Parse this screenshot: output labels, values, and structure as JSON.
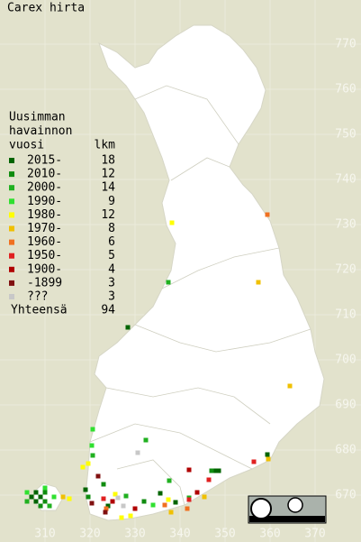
{
  "map": {
    "title": "Carex hirta",
    "legend": {
      "heading": [
        "Uusimman",
        "havainnon",
        "vuosi"
      ],
      "count_heading": "lkm",
      "items": [
        {
          "label": "2015-",
          "count": 18,
          "color": "#006400",
          "points": [
            [
              328.4,
              707.2
            ],
            [
              359.4,
              679
            ],
            [
              348,
              675.4
            ],
            [
              348.6,
              675.4
            ],
            [
              339,
              668.4
            ],
            [
              335.6,
              670.4
            ],
            [
              307,
              669.6
            ],
            [
              308,
              670.6
            ],
            [
              309,
              669.6
            ],
            [
              308,
              668.6
            ],
            [
              319,
              671.2
            ],
            [
              324,
              667.6
            ]
          ]
        },
        {
          "label": "2010-",
          "count": 12,
          "color": "#108c10",
          "points": [
            [
              347,
              675.4
            ],
            [
              319.6,
              669.6
            ],
            [
              310,
              668.6
            ],
            [
              309,
              667.6
            ],
            [
              310,
              670.6
            ],
            [
              323,
              672.4
            ],
            [
              332,
              668.6
            ]
          ]
        },
        {
          "label": "2000-",
          "count": 14,
          "color": "#20b020",
          "points": [
            [
              337.4,
              717.2
            ],
            [
              332.4,
              682.2
            ],
            [
              320.6,
              678.8
            ],
            [
              337.6,
              673.2
            ],
            [
              311,
              667.6
            ],
            [
              306,
              668.6
            ],
            [
              328,
              669.8
            ],
            [
              342,
              669.4
            ]
          ]
        },
        {
          "label": "1990-",
          "count": 9,
          "color": "#30e030",
          "points": [
            [
              320.6,
              684.6
            ],
            [
              320.4,
              681
            ],
            [
              312,
              669.6
            ],
            [
              306,
              670.6
            ],
            [
              310,
              671.6
            ],
            [
              334,
              667.8
            ]
          ]
        },
        {
          "label": "1980-",
          "count": 12,
          "color": "#ffff00",
          "points": [
            [
              338.2,
              730.4
            ],
            [
              318.4,
              676.2
            ],
            [
              319.6,
              677
            ],
            [
              325.6,
              670.2
            ],
            [
              315.4,
              669.2
            ],
            [
              327,
              665
            ],
            [
              329,
              665.4
            ],
            [
              337.4,
              669
            ]
          ]
        },
        {
          "label": "1970-",
          "count": 8,
          "color": "#f0c000",
          "points": [
            [
              357.4,
              717.2
            ],
            [
              364.4,
              694.2
            ],
            [
              359.6,
              678
            ],
            [
              314,
              669.6
            ],
            [
              345.4,
              669.6
            ],
            [
              338,
              666.2
            ]
          ]
        },
        {
          "label": "1960-",
          "count": 6,
          "color": "#f07020",
          "points": [
            [
              359.4,
              732.2
            ],
            [
              323.6,
              667
            ],
            [
              336.6,
              667.8
            ],
            [
              341.6,
              667
            ]
          ]
        },
        {
          "label": "1950-",
          "count": 5,
          "color": "#e02020",
          "points": [
            [
              356.4,
              677.4
            ],
            [
              346.4,
              673.4
            ],
            [
              323,
              669.2
            ],
            [
              342,
              669
            ]
          ]
        },
        {
          "label": "1900-",
          "count": 4,
          "color": "#b00000",
          "points": [
            [
              342,
              675.6
            ],
            [
              325,
              668.6
            ],
            [
              330,
              667
            ],
            [
              343.8,
              670.6
            ]
          ]
        },
        {
          "label": "-1899",
          "count": 3,
          "color": "#801010",
          "points": [
            [
              321.8,
              674.2
            ],
            [
              323.4,
              666.2
            ],
            [
              320.4,
              668.2
            ]
          ]
        },
        {
          "label": "???",
          "count": 3,
          "color": "#c8c8c8",
          "points": [
            [
              330.6,
              679.4
            ],
            [
              327.4,
              667.6
            ],
            [
              326.2,
              669.4
            ]
          ]
        }
      ],
      "total": {
        "label": "Yhteensä",
        "value": 94
      }
    },
    "xticks": [
      310,
      320,
      330,
      340,
      350,
      360,
      370
    ],
    "yticks": [
      670,
      680,
      690,
      700,
      710,
      720,
      730,
      740,
      750,
      760,
      770
    ]
  }
}
